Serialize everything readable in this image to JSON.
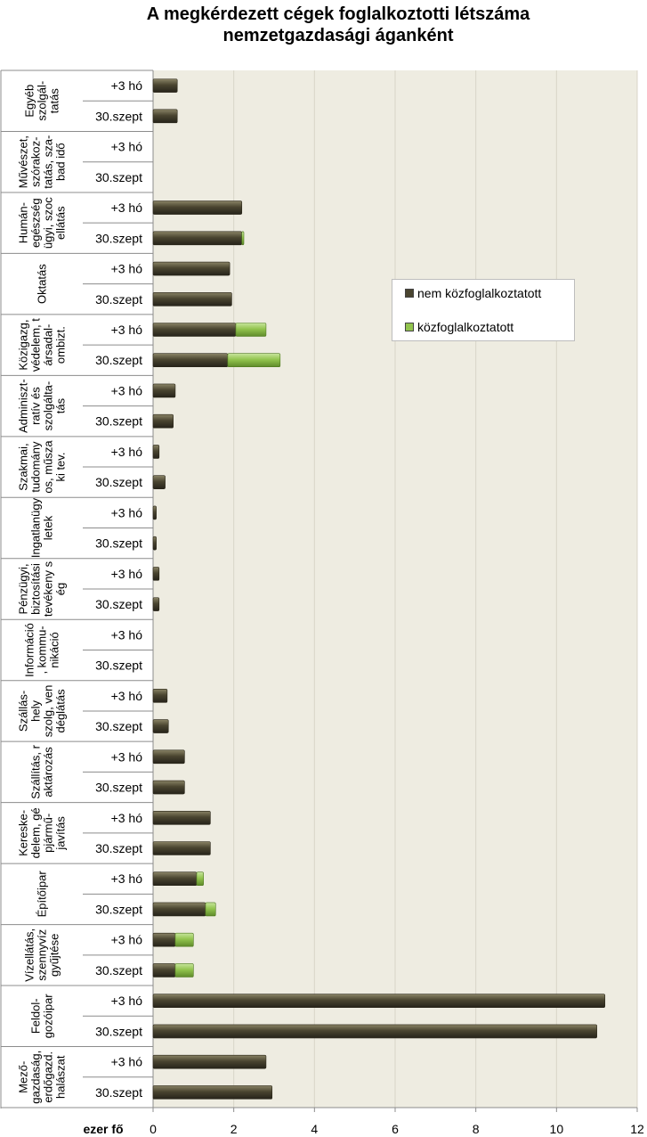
{
  "chart_data": {
    "type": "bar",
    "orientation": "horizontal",
    "stacked": true,
    "title_lines": [
      "A megkérdezett cégek foglalkoztotti létszáma",
      "nemzetgazdasági áganként"
    ],
    "xlabel": "ezer fő",
    "xlim": [
      0,
      12
    ],
    "xticks": [
      0,
      2,
      4,
      6,
      8,
      10,
      12
    ],
    "grid": true,
    "legend_position": "right-upper",
    "series": [
      {
        "name": "nem közfoglalkoztatott",
        "color": "#4a4530"
      },
      {
        "name": "közfoglalkoztatott",
        "color": "#92c44e"
      }
    ],
    "groups": [
      {
        "label_lines": [
          "Egyéb",
          "szolgál-",
          "tatás"
        ],
        "bars": [
          {
            "label": "+3 hó",
            "values": [
              0.6,
              0
            ]
          },
          {
            "label": "30.szept",
            "values": [
              0.6,
              0
            ]
          }
        ]
      },
      {
        "label_lines": [
          "Művészet,",
          "szórakoz-",
          "tatás, sza-",
          "bad idő"
        ],
        "bars": [
          {
            "label": "+3 hó",
            "values": [
              0,
              0
            ]
          },
          {
            "label": "30.szept",
            "values": [
              0,
              0
            ]
          }
        ]
      },
      {
        "label_lines": [
          "Humán-",
          "egészség",
          "ügyi, szoc",
          "ellátás"
        ],
        "bars": [
          {
            "label": "+3 hó",
            "values": [
              2.2,
              0
            ]
          },
          {
            "label": "30.szept",
            "values": [
              2.2,
              0.05
            ]
          }
        ]
      },
      {
        "label_lines": [
          "Oktatás"
        ],
        "bars": [
          {
            "label": "+3 hó",
            "values": [
              1.9,
              0
            ]
          },
          {
            "label": "30.szept",
            "values": [
              1.95,
              0
            ]
          }
        ]
      },
      {
        "label_lines": [
          "Közigazg,",
          "védelem, t",
          "ársadal-",
          "ombizt."
        ],
        "bars": [
          {
            "label": "+3 hó",
            "values": [
              2.05,
              0.75
            ]
          },
          {
            "label": "30.szept",
            "values": [
              1.85,
              1.3
            ]
          }
        ]
      },
      {
        "label_lines": [
          "Adminiszt-",
          "ratív és",
          "szolgálta-",
          "tás"
        ],
        "bars": [
          {
            "label": "+3 hó",
            "values": [
              0.55,
              0
            ]
          },
          {
            "label": "30.szept",
            "values": [
              0.5,
              0
            ]
          }
        ]
      },
      {
        "label_lines": [
          "Szakmai,",
          "tudomány",
          "os, műsza",
          "ki tev."
        ],
        "bars": [
          {
            "label": "+3 hó",
            "values": [
              0.15,
              0
            ]
          },
          {
            "label": "30.szept",
            "values": [
              0.3,
              0
            ]
          }
        ]
      },
      {
        "label_lines": [
          "Ingatlanügy",
          "letek"
        ],
        "bars": [
          {
            "label": "+3 hó",
            "values": [
              0.08,
              0
            ]
          },
          {
            "label": "30.szept",
            "values": [
              0.08,
              0
            ]
          }
        ]
      },
      {
        "label_lines": [
          "Pénzügyi,",
          "biztosítási",
          "tevékeny s",
          "ég"
        ],
        "bars": [
          {
            "label": "+3 hó",
            "values": [
              0.15,
              0
            ]
          },
          {
            "label": "30.szept",
            "values": [
              0.15,
              0
            ]
          }
        ]
      },
      {
        "label_lines": [
          "Információ",
          ", kommu-",
          "nikáció"
        ],
        "bars": [
          {
            "label": "+3 hó",
            "values": [
              0,
              0
            ]
          },
          {
            "label": "30.szept",
            "values": [
              0,
              0
            ]
          }
        ]
      },
      {
        "label_lines": [
          "Szállás-",
          "hely",
          "szolg, ven",
          "déglátás"
        ],
        "bars": [
          {
            "label": "+3 hó",
            "values": [
              0.35,
              0
            ]
          },
          {
            "label": "30.szept",
            "values": [
              0.38,
              0
            ]
          }
        ]
      },
      {
        "label_lines": [
          "Szállítás, r",
          "aktározás"
        ],
        "bars": [
          {
            "label": "+3 hó",
            "values": [
              0.78,
              0
            ]
          },
          {
            "label": "30.szept",
            "values": [
              0.78,
              0
            ]
          }
        ]
      },
      {
        "label_lines": [
          "Kereske-",
          "delem, gé",
          "pjármű-",
          "javítás"
        ],
        "bars": [
          {
            "label": "+3 hó",
            "values": [
              1.42,
              0
            ]
          },
          {
            "label": "30.szept",
            "values": [
              1.42,
              0
            ]
          }
        ]
      },
      {
        "label_lines": [
          "Építőipar"
        ],
        "bars": [
          {
            "label": "+3 hó",
            "values": [
              1.08,
              0.17
            ]
          },
          {
            "label": "30.szept",
            "values": [
              1.3,
              0.25
            ]
          }
        ]
      },
      {
        "label_lines": [
          "Vízellátás,",
          "szennyvíz",
          "gyűjtése"
        ],
        "bars": [
          {
            "label": "+3 hó",
            "values": [
              0.55,
              0.45
            ]
          },
          {
            "label": "30.szept",
            "values": [
              0.55,
              0.45
            ]
          }
        ]
      },
      {
        "label_lines": [
          "Feldol-",
          "gozóipar"
        ],
        "bars": [
          {
            "label": "+3 hó",
            "values": [
              11.2,
              0
            ]
          },
          {
            "label": "30.szept",
            "values": [
              11.0,
              0
            ]
          }
        ]
      },
      {
        "label_lines": [
          "Mező-",
          "gazdaság,",
          "erdőgazd.",
          "halászat"
        ],
        "bars": [
          {
            "label": "+3 hó",
            "values": [
              2.8,
              0
            ]
          },
          {
            "label": "30.szept",
            "values": [
              2.95,
              0
            ]
          }
        ]
      }
    ]
  }
}
